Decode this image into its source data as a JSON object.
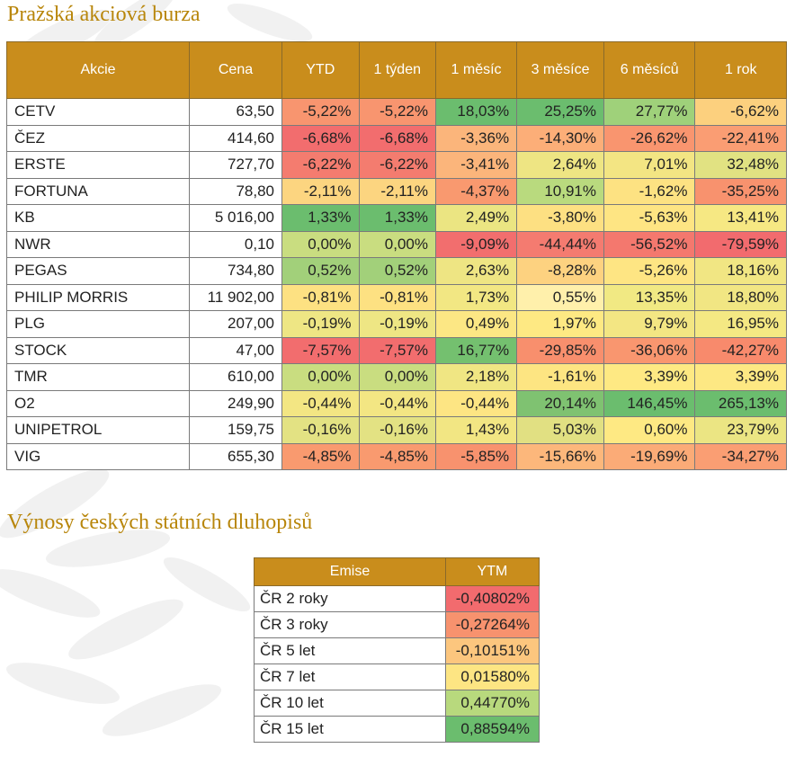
{
  "stocks_section": {
    "title": "Pražská akciová burza",
    "headers": [
      "Akcie",
      "Cena",
      "YTD",
      "1 týden",
      "1 měsíc",
      "3 měsíce",
      "6 měsíců",
      "1 rok"
    ],
    "rows": [
      {
        "name": "CETV",
        "price": "63,50",
        "values": [
          "-5,22%",
          "-5,22%",
          "18,03%",
          "25,25%",
          "27,77%",
          "-6,62%"
        ],
        "colors": [
          "#f8956f",
          "#f8956f",
          "#6bbd6e",
          "#6bbd6e",
          "#9fd17a",
          "#fcd07e"
        ]
      },
      {
        "name": "ČEZ",
        "price": "414,60",
        "values": [
          "-6,68%",
          "-6,68%",
          "-3,36%",
          "-14,30%",
          "-26,62%",
          "-22,41%"
        ],
        "colors": [
          "#f26d6e",
          "#f26d6e",
          "#fbb57b",
          "#fcae78",
          "#f9956f",
          "#fa9d73"
        ]
      },
      {
        "name": "ERSTE",
        "price": "727,70",
        "values": [
          "-6,22%",
          "-6,22%",
          "-3,41%",
          "2,64%",
          "7,01%",
          "32,48%"
        ],
        "colors": [
          "#f47c6f",
          "#f47c6f",
          "#fbb57b",
          "#eee583",
          "#f3e583",
          "#e1e282"
        ]
      },
      {
        "name": "FORTUNA",
        "price": "78,80",
        "values": [
          "-2,11%",
          "-2,11%",
          "-4,37%",
          "10,91%",
          "-1,62%",
          "-35,25%"
        ],
        "colors": [
          "#fcd580",
          "#fcd580",
          "#f9996f",
          "#b9da7e",
          "#fde282",
          "#f8926e"
        ]
      },
      {
        "name": "KB",
        "price": "5 016,00",
        "values": [
          "1,33%",
          "1,33%",
          "2,49%",
          "-3,80%",
          "-5,63%",
          "13,41%"
        ],
        "colors": [
          "#6bbd6e",
          "#6bbd6e",
          "#ebe582",
          "#fde082",
          "#fee583",
          "#f6e883"
        ]
      },
      {
        "name": "NWR",
        "price": "0,10",
        "values": [
          "0,00%",
          "0,00%",
          "-9,09%",
          "-44,44%",
          "-56,52%",
          "-79,59%"
        ],
        "colors": [
          "#c9dd80",
          "#c9dd80",
          "#f26e6e",
          "#f47b70",
          "#f4786e",
          "#f26b6e"
        ]
      },
      {
        "name": "PEGAS",
        "price": "734,80",
        "values": [
          "0,52%",
          "0,52%",
          "2,63%",
          "-8,28%",
          "-5,26%",
          "18,16%"
        ],
        "colors": [
          "#a2d07a",
          "#a2d07a",
          "#eee583",
          "#fdd280",
          "#fee583",
          "#f1e683"
        ]
      },
      {
        "name": "PHILIP MORRIS",
        "price": "11 902,00",
        "values": [
          "-0,81%",
          "-0,81%",
          "1,73%",
          "0,55%",
          "13,35%",
          "18,80%"
        ],
        "colors": [
          "#fde182",
          "#fde182",
          "#f2e783",
          "#fff0ab",
          "#f1e983",
          "#f1e683"
        ]
      },
      {
        "name": "PLG",
        "price": "207,00",
        "values": [
          "-0,19%",
          "-0,19%",
          "0,49%",
          "1,97%",
          "9,79%",
          "16,95%"
        ],
        "colors": [
          "#eee684",
          "#eee684",
          "#fce784",
          "#fee983",
          "#f3e683",
          "#f4e883"
        ]
      },
      {
        "name": "STOCK",
        "price": "47,00",
        "values": [
          "-7,57%",
          "-7,57%",
          "16,77%",
          "-29,85%",
          "-36,06%",
          "-42,27%"
        ],
        "colors": [
          "#f26d6e",
          "#f26d6e",
          "#74c06f",
          "#f88f6d",
          "#f9966f",
          "#f88a6c"
        ]
      },
      {
        "name": "TMR",
        "price": "610,00",
        "values": [
          "0,00%",
          "0,00%",
          "2,18%",
          "-1,61%",
          "3,39%",
          "3,39%"
        ],
        "colors": [
          "#c9dd80",
          "#c9dd80",
          "#f0e683",
          "#fde582",
          "#fee983",
          "#fde883"
        ]
      },
      {
        "name": "O2",
        "price": "249,90",
        "values": [
          "-0,44%",
          "-0,44%",
          "-0,44%",
          "20,14%",
          "146,45%",
          "265,13%"
        ],
        "colors": [
          "#f3e683",
          "#f3e683",
          "#fde583",
          "#7fc271",
          "#6bbd6e",
          "#6bbd6e"
        ]
      },
      {
        "name": "UNIPETROL",
        "price": "159,75",
        "values": [
          "-0,16%",
          "-0,16%",
          "1,43%",
          "5,03%",
          "0,60%",
          "23,79%"
        ],
        "colors": [
          "#e3e283",
          "#e3e283",
          "#f2e683",
          "#e1e082",
          "#fee983",
          "#ebe583"
        ]
      },
      {
        "name": "VIG",
        "price": "655,30",
        "values": [
          "-4,85%",
          "-4,85%",
          "-5,85%",
          "-15,66%",
          "-19,69%",
          "-34,27%"
        ],
        "colors": [
          "#f99a6f",
          "#f99a6f",
          "#f8926e",
          "#fcb77b",
          "#fbab77",
          "#fa9e73"
        ]
      }
    ]
  },
  "bonds_section": {
    "title": "Výnosy českých státních dluhopisů",
    "headers": [
      "Emise",
      "YTM"
    ],
    "rows": [
      {
        "name": "ČR 2 roky",
        "value": "-0,40802%",
        "color": "#f26b6e"
      },
      {
        "name": "ČR 3 roky",
        "value": "-0,27264%",
        "color": "#f7926e"
      },
      {
        "name": "ČR 5 let",
        "value": "-0,10151%",
        "color": "#fcc67e"
      },
      {
        "name": "ČR 7 let",
        "value": "0,01580%",
        "color": "#fde583"
      },
      {
        "name": "ČR 10 let",
        "value": "0,44770%",
        "color": "#b8d97d"
      },
      {
        "name": "ČR 15 let",
        "value": "0,88594%",
        "color": "#6bbd6e"
      }
    ]
  }
}
